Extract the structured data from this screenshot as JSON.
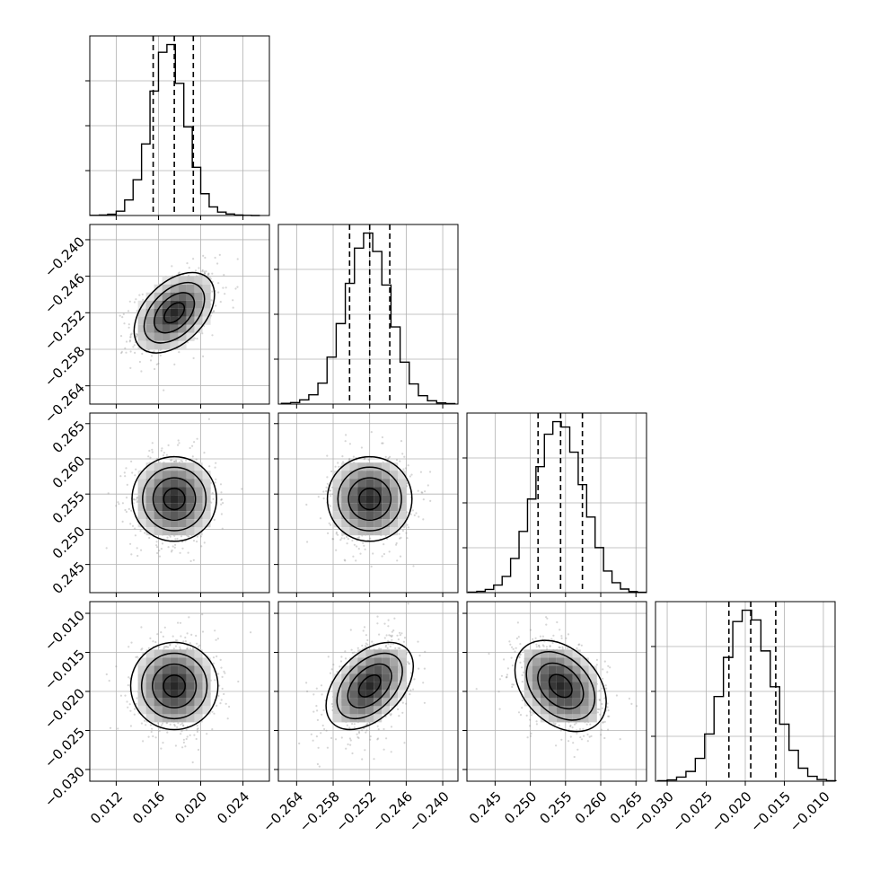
{
  "chart_data": {
    "type": "corner",
    "title": "",
    "grid": true,
    "parameters": [
      {
        "name": "",
        "range": [
          0.0095,
          0.0265
        ],
        "ticks": [
          0.012,
          0.016,
          0.02,
          0.024
        ],
        "tick_labels": [
          "0.012",
          "0.016",
          "0.020",
          "0.024"
        ],
        "quantiles": [
          0.0155,
          0.0175,
          0.0193
        ],
        "hist_bins": [
          0.0096,
          0.0104,
          0.0112,
          0.012,
          0.0128,
          0.0136,
          0.0144,
          0.0152,
          0.016,
          0.0168,
          0.0176,
          0.0184,
          0.0192,
          0.02,
          0.0208,
          0.0216,
          0.0224,
          0.0232,
          0.024,
          0.0248
        ],
        "hist_counts": [
          1,
          3,
          8,
          28,
          100,
          230,
          460,
          800,
          1050,
          1100,
          850,
          570,
          310,
          140,
          55,
          22,
          10,
          3,
          1,
          0
        ]
      },
      {
        "name": "",
        "range": [
          -0.267,
          -0.2375
        ],
        "ticks": [
          -0.264,
          -0.258,
          -0.252,
          -0.246,
          -0.24
        ],
        "tick_labels": [
          "−0.264",
          "−0.258",
          "−0.252",
          "−0.246",
          "−0.240"
        ],
        "quantiles": [
          -0.2553,
          -0.252,
          -0.2487
        ],
        "hist_bins": [
          -0.2665,
          -0.265,
          -0.2635,
          -0.262,
          -0.2605,
          -0.259,
          -0.2575,
          -0.256,
          -0.2545,
          -0.253,
          -0.2515,
          -0.25,
          -0.2485,
          -0.247,
          -0.2455,
          -0.244,
          -0.2425,
          -0.241,
          -0.2395
        ],
        "hist_counts": [
          4,
          9,
          25,
          55,
          125,
          280,
          480,
          720,
          930,
          1020,
          910,
          710,
          460,
          250,
          120,
          50,
          20,
          7,
          3
        ]
      },
      {
        "name": "",
        "range": [
          0.241,
          0.2665
        ],
        "ticks": [
          0.245,
          0.25,
          0.255,
          0.26,
          0.265
        ],
        "tick_labels": [
          "0.245",
          "0.250",
          "0.255",
          "0.260",
          "0.265"
        ],
        "quantiles": [
          0.2511,
          0.2543,
          0.2574
        ],
        "hist_bins": [
          0.2412,
          0.2424,
          0.2436,
          0.2448,
          0.246,
          0.2472,
          0.2484,
          0.2496,
          0.2508,
          0.252,
          0.2532,
          0.2544,
          0.2556,
          0.2568,
          0.258,
          0.2592,
          0.2604,
          0.2616,
          0.2628,
          0.264,
          0.2652
        ],
        "hist_counts": [
          3,
          7,
          18,
          42,
          90,
          190,
          340,
          520,
          700,
          880,
          950,
          920,
          780,
          600,
          420,
          250,
          120,
          55,
          20,
          6,
          2
        ]
      },
      {
        "name": "",
        "range": [
          -0.0315,
          -0.0085
        ],
        "ticks": [
          -0.03,
          -0.025,
          -0.02,
          -0.015,
          -0.01
        ],
        "tick_labels": [
          "−0.030",
          "−0.025",
          "−0.020",
          "−0.015",
          "−0.010"
        ],
        "quantiles": [
          -0.0221,
          -0.0193,
          -0.0161
        ],
        "hist_bins": [
          -0.0312,
          -0.03,
          -0.0288,
          -0.0276,
          -0.0264,
          -0.0252,
          -0.024,
          -0.0228,
          -0.0216,
          -0.0204,
          -0.0192,
          -0.018,
          -0.0168,
          -0.0156,
          -0.0144,
          -0.0132,
          -0.012,
          -0.0108,
          -0.0096
        ],
        "hist_counts": [
          3,
          8,
          25,
          60,
          140,
          290,
          520,
          760,
          980,
          1050,
          990,
          800,
          580,
          350,
          190,
          80,
          30,
          10,
          3
        ]
      }
    ],
    "correlations": {
      "1-0": 0.45,
      "2-0": 0.0,
      "2-1": 0.0,
      "3-0": 0.0,
      "3-1": 0.45,
      "3-2": -0.35
    }
  }
}
